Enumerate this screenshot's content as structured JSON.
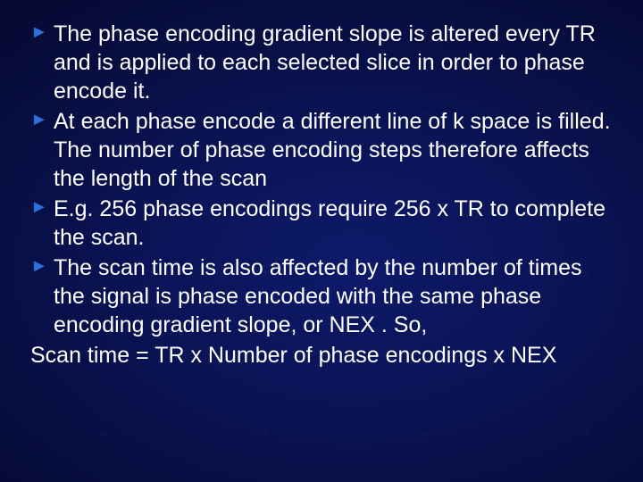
{
  "slide": {
    "background": {
      "center_color": "#0e1a6a",
      "outer_color": "#05082f",
      "gradient_type": "radial"
    },
    "text_color": "#ffffff",
    "bullet_color": "#2f6fd8",
    "bullet_glyph": "►",
    "font_family": "Arial",
    "body_fontsize_pt": 19,
    "bullets": [
      "The phase encoding gradient slope is altered every TR and is applied to each selected slice in order to phase encode it.",
      "At each phase encode a different line of k space is filled. The number of phase encoding steps therefore affects the length of the scan",
      "E.g. 256 phase encodings require 256 x TR to complete the scan.",
      "The scan time is also affected by the number of times the signal is phase encoded with the same phase encoding gradient slope, or NEX . So,"
    ],
    "closing_line": "Scan time = TR x Number of phase encodings x NEX"
  }
}
